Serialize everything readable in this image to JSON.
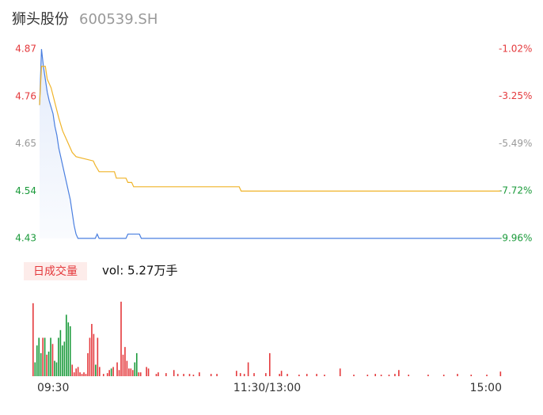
{
  "chart_data": [
    {
      "type": "line",
      "title": "狮头股份",
      "subtitle": "600539.SH",
      "xlim": [
        0,
        240
      ],
      "ylim": [
        4.43,
        4.87
      ],
      "yticks": [
        4.87,
        4.76,
        4.65,
        4.54,
        4.43
      ],
      "ytick_colors": [
        "#e4393c",
        "#e4393c",
        "#999999",
        "#1a9a3a",
        "#1a9a3a"
      ],
      "y2lim": [
        -9.96,
        -1.02
      ],
      "y2ticks": [
        {
          "value": -1.02,
          "label": "-1.02%"
        },
        {
          "value": -3.25,
          "label": "-3.25%"
        },
        {
          "value": -5.49,
          "label": "-5.49%"
        },
        {
          "value": -7.72,
          "label": "-7.72%"
        },
        {
          "value": -9.96,
          "label": "-9.96%"
        }
      ],
      "y2tick_colors": [
        "#e4393c",
        "#e4393c",
        "#999999",
        "#1a9a3a",
        "#1a9a3a"
      ],
      "series": [
        {
          "color": "#4a7fe0",
          "area": true,
          "x": [
            0,
            1,
            2,
            3,
            4,
            5,
            7,
            8,
            9,
            10,
            12,
            14,
            16,
            17,
            18,
            19,
            20,
            29,
            30,
            31,
            45,
            46,
            52,
            53,
            240
          ],
          "values": [
            4.74,
            4.87,
            4.83,
            4.8,
            4.77,
            4.75,
            4.72,
            4.69,
            4.67,
            4.64,
            4.6,
            4.56,
            4.52,
            4.49,
            4.46,
            4.44,
            4.43,
            4.43,
            4.44,
            4.43,
            4.43,
            4.44,
            4.44,
            4.43,
            4.43
          ]
        },
        {
          "color": "#f0b429",
          "area": false,
          "x": [
            0,
            1,
            3,
            4,
            6,
            8,
            10,
            12,
            15,
            17,
            19,
            28,
            29,
            31,
            39,
            40,
            45,
            46,
            48,
            49,
            104,
            105,
            240
          ],
          "values": [
            4.74,
            4.83,
            4.83,
            4.8,
            4.78,
            4.745,
            4.71,
            4.68,
            4.65,
            4.63,
            4.62,
            4.61,
            4.6,
            4.585,
            4.585,
            4.57,
            4.57,
            4.56,
            4.56,
            4.55,
            4.55,
            4.54,
            4.54
          ]
        }
      ]
    },
    {
      "type": "bar",
      "label": "日成交量",
      "text": "vol: 5.27万手",
      "xlim": [
        0,
        240
      ],
      "ylim": [
        0,
        100
      ],
      "xticks": [
        {
          "value": 0,
          "label": "09:30"
        },
        {
          "value": 120,
          "label": "11:30/13:00"
        },
        {
          "value": 240,
          "label": "15:00"
        }
      ],
      "x": [
        0,
        1,
        2,
        3,
        4,
        5,
        6,
        7,
        8,
        9,
        10,
        11,
        12,
        13,
        14,
        15,
        16,
        17,
        18,
        19,
        20,
        21,
        22,
        23,
        24,
        25,
        26,
        27,
        28,
        29,
        30,
        31,
        32,
        33,
        34,
        36,
        38,
        39,
        40,
        41,
        43,
        44,
        45,
        46,
        47,
        48,
        49,
        50,
        51,
        52,
        53,
        54,
        55,
        58,
        59,
        63,
        64,
        68,
        72,
        74,
        77,
        80,
        82,
        85,
        91,
        94,
        104,
        106,
        108,
        110,
        113,
        119,
        121,
        126,
        127,
        130,
        136,
        140,
        145,
        149,
        157,
        164,
        171,
        175,
        178,
        182,
        185,
        187,
        192,
        202,
        210,
        217,
        224,
        232,
        239
      ],
      "values": [
        95,
        18,
        40,
        50,
        30,
        50,
        50,
        28,
        32,
        50,
        42,
        20,
        18,
        50,
        60,
        40,
        45,
        80,
        70,
        65,
        15,
        5,
        10,
        12,
        5,
        3,
        5,
        3,
        30,
        50,
        68,
        55,
        15,
        50,
        12,
        3,
        4,
        8,
        10,
        12,
        18,
        8,
        97,
        28,
        38,
        20,
        10,
        10,
        8,
        18,
        30,
        5,
        5,
        12,
        10,
        3,
        5,
        4,
        8,
        3,
        3,
        3,
        2,
        5,
        3,
        3,
        7,
        4,
        3,
        18,
        4,
        4,
        30,
        3,
        7,
        3,
        2,
        3,
        3,
        2,
        10,
        2,
        2,
        3,
        2,
        2,
        3,
        8,
        2,
        2,
        2,
        3,
        2,
        2,
        6
      ],
      "colors": [
        "#e4393c",
        "#1a9a3a",
        "#1a9a3a",
        "#1a9a3a",
        "#1a9a3a",
        "#e4393c",
        "#1a9a3a",
        "#e4393c",
        "#1a9a3a",
        "#1a9a3a",
        "#e4393c",
        "#1a9a3a",
        "#1a9a3a",
        "#1a9a3a",
        "#1a9a3a",
        "#1a9a3a",
        "#1a9a3a",
        "#1a9a3a",
        "#1a9a3a",
        "#1a9a3a",
        "#e4393c",
        "#e4393c",
        "#e4393c",
        "#e4393c",
        "#e4393c",
        "#e4393c",
        "#e4393c",
        "#e4393c",
        "#e4393c",
        "#e4393c",
        "#e4393c",
        "#e4393c",
        "#1a9a3a",
        "#e4393c",
        "#e4393c",
        "#e4393c",
        "#e4393c",
        "#e4393c",
        "#1a9a3a",
        "#e4393c",
        "#e4393c",
        "#e4393c",
        "#e4393c",
        "#e4393c",
        "#e4393c",
        "#e4393c",
        "#e4393c",
        "#e4393c",
        "#e4393c",
        "#1a9a3a",
        "#1a9a3a",
        "#e4393c",
        "#e4393c",
        "#e4393c",
        "#e4393c",
        "#e4393c",
        "#e4393c",
        "#e4393c",
        "#e4393c",
        "#e4393c",
        "#e4393c",
        "#e4393c",
        "#e4393c",
        "#e4393c",
        "#e4393c",
        "#e4393c",
        "#e4393c",
        "#e4393c",
        "#e4393c",
        "#e4393c",
        "#e4393c",
        "#e4393c",
        "#e4393c",
        "#e4393c",
        "#e4393c",
        "#e4393c",
        "#e4393c",
        "#e4393c",
        "#e4393c",
        "#e4393c",
        "#e4393c",
        "#e4393c",
        "#e4393c",
        "#e4393c",
        "#e4393c",
        "#e4393c",
        "#e4393c",
        "#e4393c",
        "#e4393c",
        "#e4393c",
        "#e4393c",
        "#e4393c",
        "#e4393c",
        "#e4393c",
        "#e4393c"
      ]
    }
  ]
}
